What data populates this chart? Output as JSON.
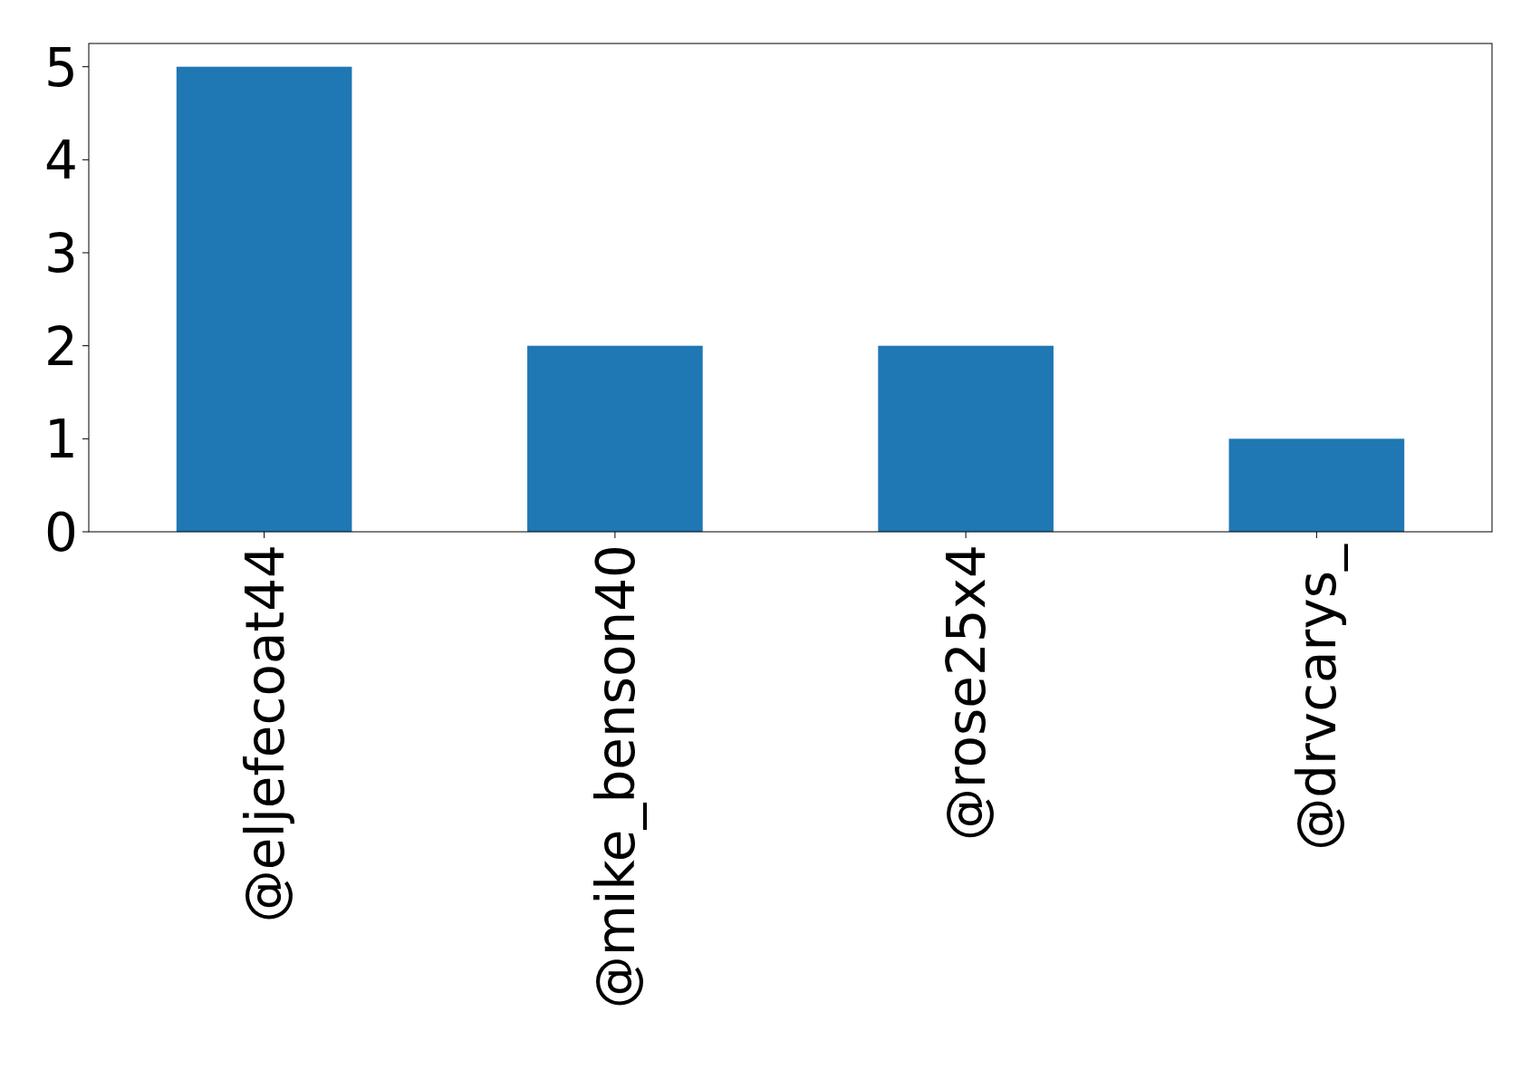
{
  "chart_data": {
    "type": "bar",
    "categories": [
      "@eljefecoat44",
      "@mike_benson40",
      "@rose25x4",
      "@drvcarys_"
    ],
    "values": [
      5,
      2,
      2,
      1
    ],
    "color": "#1f77b4",
    "ylim": [
      0,
      5.25
    ],
    "yticks": [
      0,
      1,
      2,
      3,
      4,
      5
    ],
    "grid": false
  }
}
